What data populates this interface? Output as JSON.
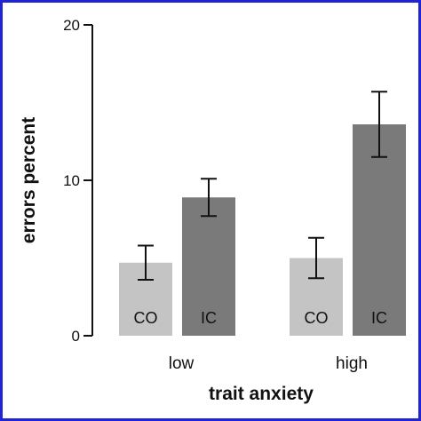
{
  "chart_data": {
    "type": "bar",
    "title": "",
    "xlabel": "trait anxiety",
    "ylabel": "errors percent",
    "ylim": [
      0,
      20
    ],
    "yticks": [
      0,
      10,
      20
    ],
    "categories": [
      "low",
      "high"
    ],
    "series": [
      {
        "name": "CO",
        "values": [
          4.7,
          5.0
        ],
        "errors": [
          1.1,
          1.3
        ],
        "color": "#c4c4c4"
      },
      {
        "name": "IC",
        "values": [
          8.9,
          13.6
        ],
        "errors": [
          1.2,
          2.1
        ],
        "color": "#7a7a7a"
      }
    ],
    "grid": false,
    "legend": "none"
  }
}
